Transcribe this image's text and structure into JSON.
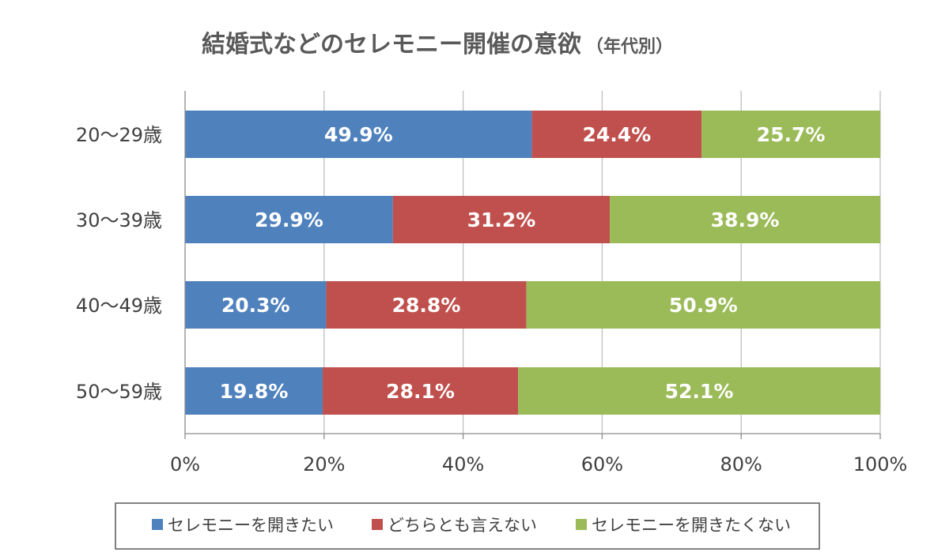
{
  "chart_data": {
    "type": "bar",
    "orientation": "horizontal",
    "stacked": "percent",
    "title": "結婚式などのセレモニー開催の意欲",
    "subtitle": "（年代別）",
    "categories": [
      "20〜29歳",
      "30〜39歳",
      "40〜49歳",
      "50〜59歳"
    ],
    "series": [
      {
        "name": "セレモニーを開きたい",
        "color": "#4f81bd",
        "values": [
          49.9,
          29.9,
          20.3,
          19.8
        ]
      },
      {
        "name": "どちらとも言えない",
        "color": "#c0504d",
        "values": [
          24.4,
          31.2,
          28.8,
          28.1
        ]
      },
      {
        "name": "セレモニーを開きたくない",
        "color": "#9bbb59",
        "values": [
          25.7,
          38.9,
          50.9,
          52.1
        ]
      }
    ],
    "data_labels": [
      [
        "49.9%",
        "24.4%",
        "25.7%"
      ],
      [
        "29.9%",
        "31.2%",
        "38.9%"
      ],
      [
        "20.3%",
        "28.8%",
        "50.9%"
      ],
      [
        "19.8%",
        "28.1%",
        "52.1%"
      ]
    ],
    "xlim": [
      0,
      100
    ],
    "x_ticks": [
      0,
      20,
      40,
      60,
      80,
      100
    ],
    "x_tick_labels": [
      "0%",
      "20%",
      "40%",
      "60%",
      "80%",
      "100%"
    ],
    "grid": true,
    "legend_position": "bottom"
  }
}
